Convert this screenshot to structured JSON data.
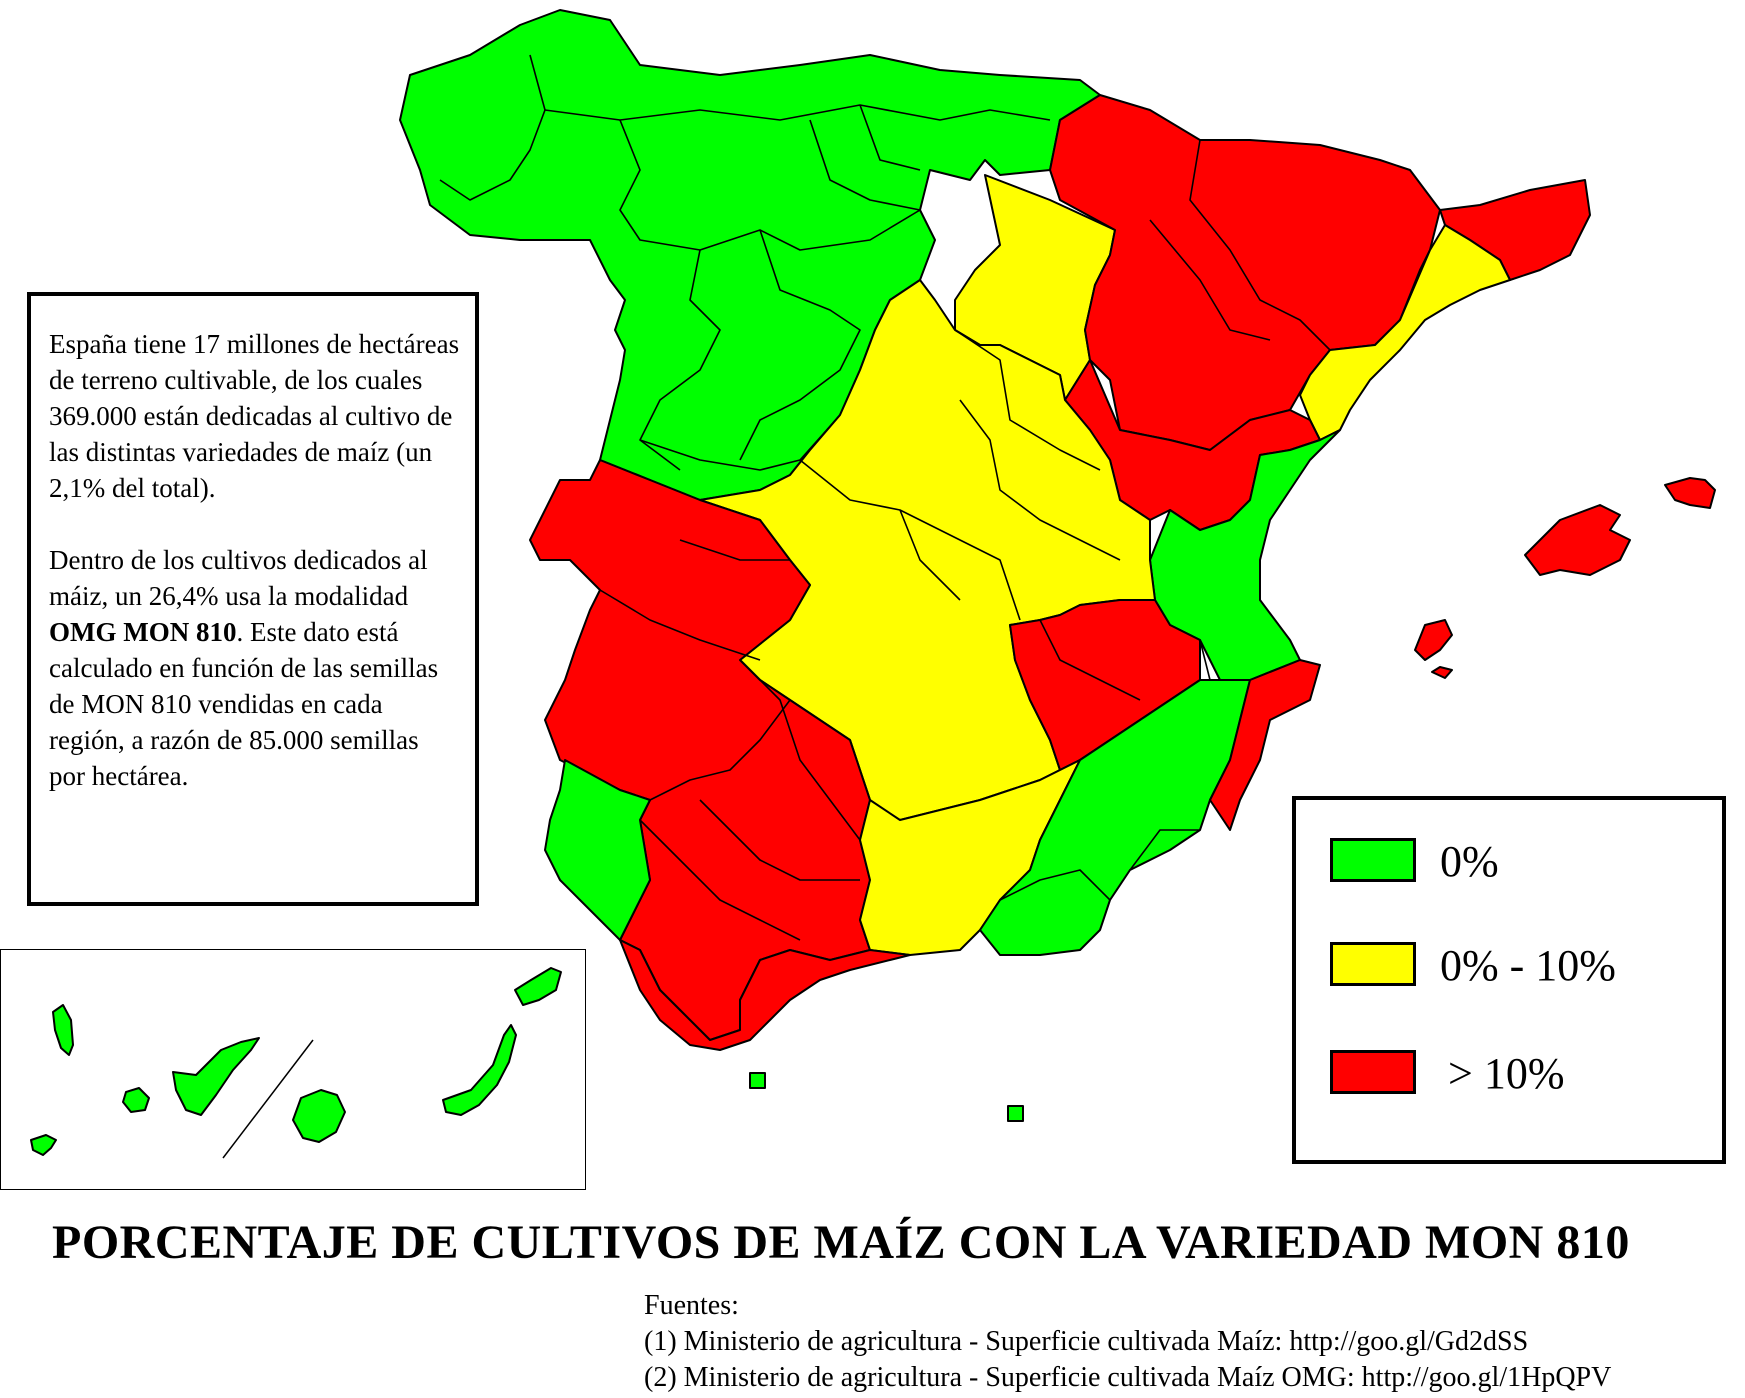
{
  "info_box": {
    "paragraph_1": "España tiene 17 millones de hectáreas de terreno cultivable, de los cuales 369.000 están dedicadas al cultivo de las distintas variedades de maíz (un 2,1% del total).",
    "paragraph_2_a": "Dentro de los cultivos dedicados al máiz, un 26,4% usa la modalidad ",
    "paragraph_2_bold": "OMG MON 810",
    "paragraph_2_b": ". Este dato está calculado en función de las semillas de MON 810 vendidas en cada región, a razón de 85.000 semillas por hectárea."
  },
  "legend": [
    {
      "label": "0%",
      "color": "#00ff00"
    },
    {
      "label": "0% - 10%",
      "color": "#ffff00"
    },
    {
      "label": "> 10%",
      "color": "#ff0000"
    }
  ],
  "title": "PORCENTAJE DE CULTIVOS DE MAÍZ  CON LA VARIEDAD MON 810",
  "sources": {
    "heading": "Fuentes:",
    "items": [
      "(1) Ministerio de agricultura - Superficie cultivada Maíz: http://goo.gl/Gd2dSS",
      "(2) Ministerio de agricultura - Superficie cultivada Maíz OMG: http://goo.gl/1HpQPV"
    ]
  },
  "colors": {
    "green": "#00ff00",
    "yellow": "#ffff00",
    "red": "#ff0000",
    "border": "#000000"
  }
}
